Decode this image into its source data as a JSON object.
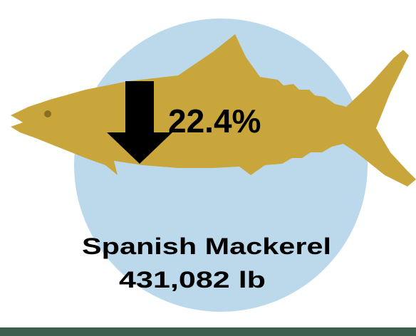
{
  "change": "22.4%",
  "species": "Spanish Mackerel",
  "weight": "431,082 lb"
}
